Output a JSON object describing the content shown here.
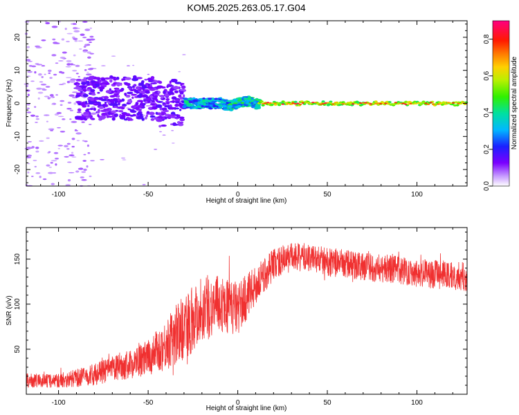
{
  "title": "KOM5.2025.263.05.17.G04",
  "colors": {
    "snr_line": "#f03030",
    "axis": "#000000",
    "background": "#ffffff"
  },
  "chart_data": [
    {
      "type": "heatmap",
      "name": "spectrogram",
      "title": "KOM5.2025.263.05.17.G04",
      "xlabel": "Height of straight line (km)",
      "ylabel": "Frequency (Hz)",
      "xlim": [
        -118,
        128
      ],
      "ylim": [
        -25,
        25
      ],
      "xticks": [
        -100,
        -50,
        0,
        50,
        100
      ],
      "yticks": [
        -20,
        -10,
        0,
        10,
        20
      ],
      "colorbar": {
        "label": "Normalized spectral amplitude",
        "range": [
          0.0,
          0.9
        ],
        "ticks": [
          0.0,
          0.2,
          0.4,
          0.6,
          0.8
        ],
        "colormap": "rainbow (white-purple-blue-cyan-green-yellow-red-magenta)"
      },
      "features": [
        {
          "description": "weak scattered noise",
          "x_range": [
            -118,
            -85
          ],
          "freq_range": [
            -25,
            25
          ],
          "amplitude": 0.05
        },
        {
          "description": "purple speckle cluster",
          "x_range": [
            -90,
            -30
          ],
          "freq_range": [
            -5,
            8
          ],
          "amplitude": 0.1
        },
        {
          "description": "narrow signal line near 0 Hz",
          "x_range": [
            -30,
            12
          ],
          "freq_range": [
            -2,
            2
          ],
          "amplitude": 0.35
        },
        {
          "description": "strong steady line at 0 Hz",
          "x_range": [
            12,
            128
          ],
          "freq_range": [
            -1,
            1
          ],
          "amplitude": 0.6
        }
      ]
    },
    {
      "type": "line",
      "name": "snr",
      "xlabel": "Height of straight line (km)",
      "ylabel": "SNR (v/v)",
      "xlim": [
        -118,
        128
      ],
      "ylim": [
        0,
        185
      ],
      "xticks": [
        -100,
        -50,
        0,
        50,
        100
      ],
      "yticks": [
        50,
        100,
        150
      ],
      "series": [
        {
          "name": "SNR",
          "x": [
            -118,
            -100,
            -90,
            -80,
            -70,
            -60,
            -50,
            -40,
            -30,
            -20,
            -10,
            0,
            10,
            20,
            30,
            40,
            50,
            60,
            70,
            80,
            90,
            100,
            110,
            120,
            128
          ],
          "mean": [
            15,
            15,
            18,
            22,
            28,
            33,
            40,
            55,
            75,
            95,
            100,
            95,
            120,
            145,
            152,
            152,
            147,
            145,
            142,
            140,
            138,
            135,
            133,
            132,
            130
          ],
          "spread": [
            8,
            8,
            10,
            12,
            14,
            16,
            20,
            28,
            38,
            38,
            32,
            30,
            22,
            18,
            16,
            16,
            16,
            16,
            16,
            16,
            16,
            16,
            16,
            16,
            16
          ]
        }
      ]
    }
  ]
}
